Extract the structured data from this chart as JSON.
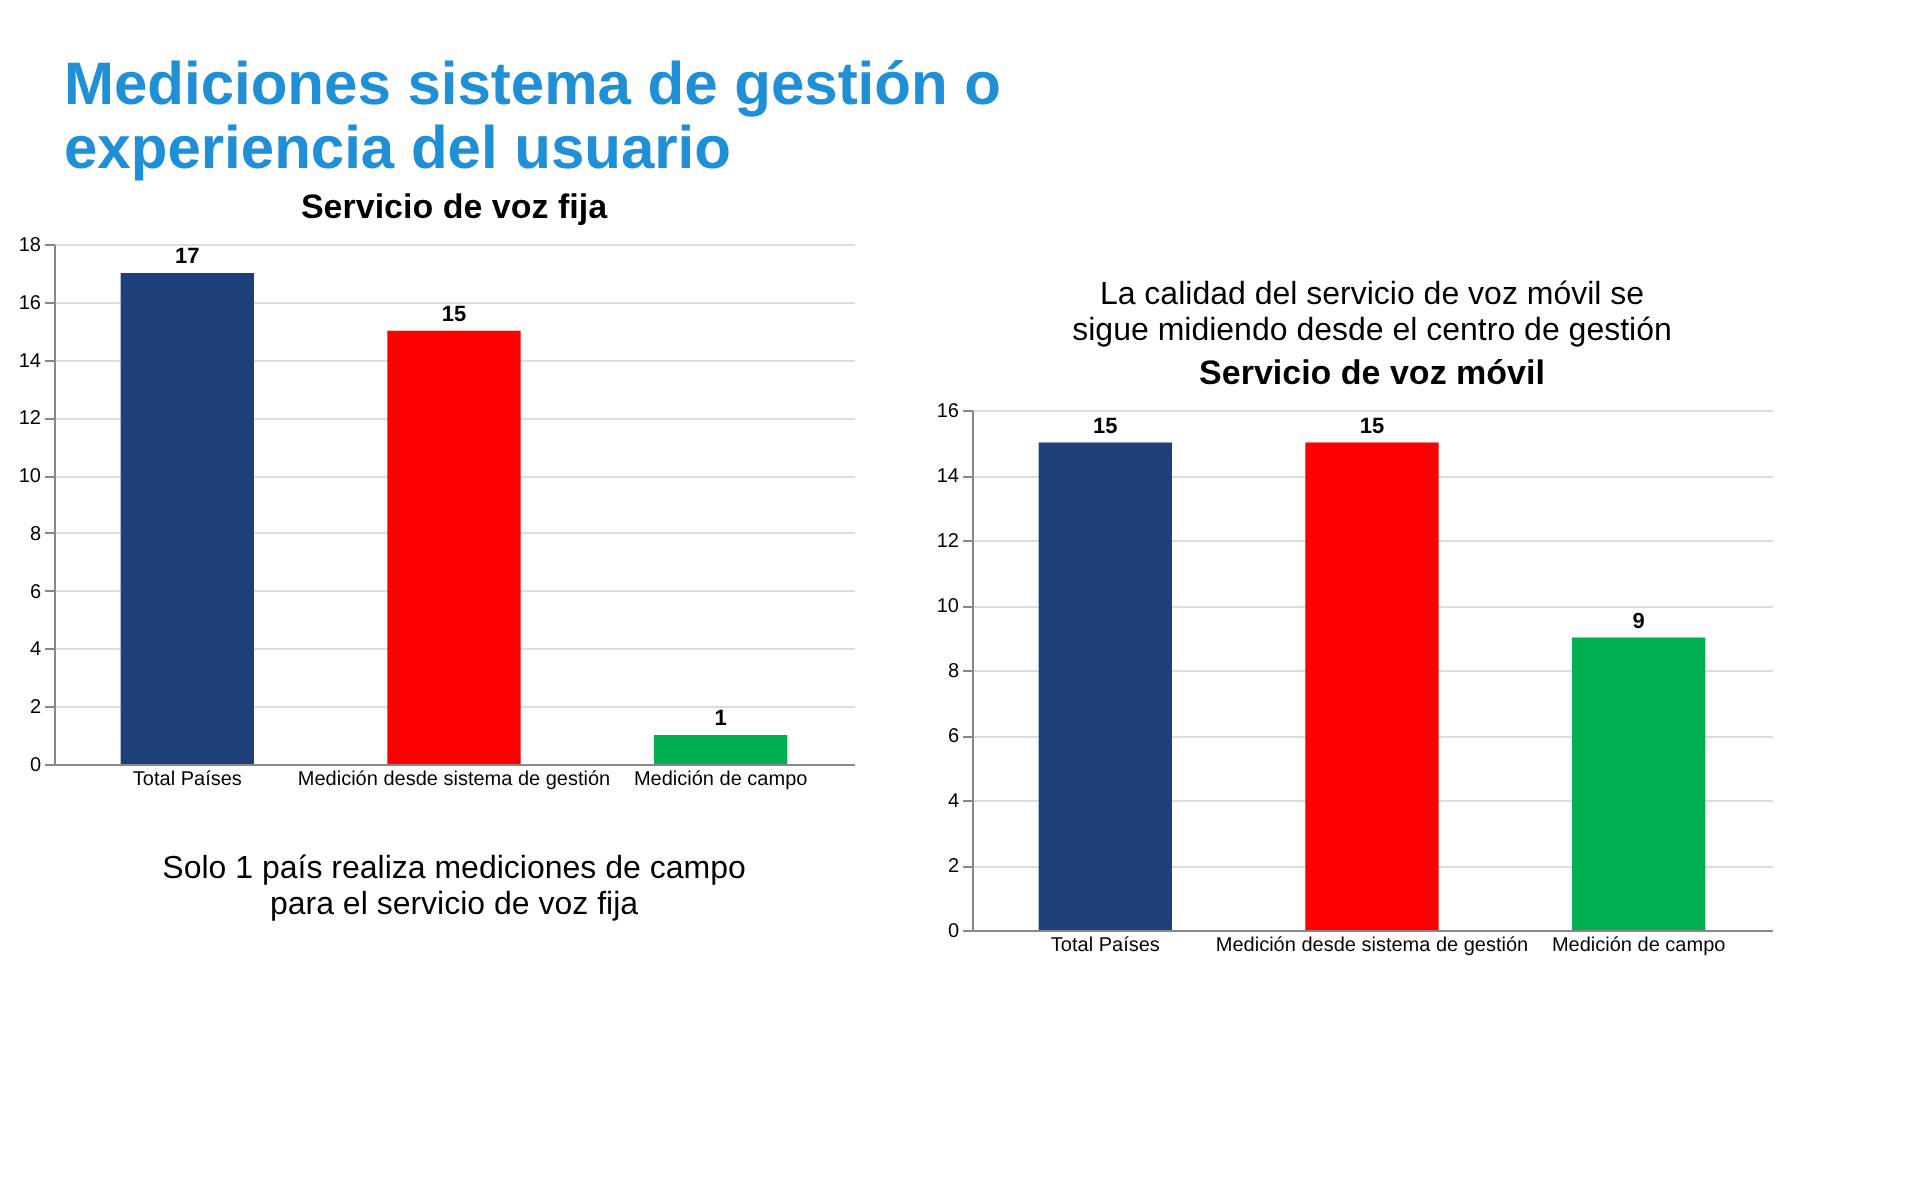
{
  "chart_data": [
    {
      "type": "bar",
      "title": "Servicio de voz fija",
      "categories": [
        "Total Países",
        "Medición desde sistema de gestión",
        "Medición de campo"
      ],
      "values": [
        17,
        15,
        1
      ],
      "colors": [
        "#1f3f7a",
        "#ff0000",
        "#00b050"
      ],
      "ylim": [
        0,
        18
      ],
      "yticks": [
        0,
        2,
        4,
        6,
        8,
        10,
        12,
        14,
        16,
        18
      ],
      "grid": "y",
      "data_labels": true,
      "annotations": [
        "Mediciones sistema de gestión o experiencia del usuario",
        "Solo 1 país realiza mediciones de campo para el servicio de voz fija"
      ]
    },
    {
      "type": "bar",
      "title": "Servicio de voz móvil",
      "categories": [
        "Total Países",
        "Medición desde sistema de gestión",
        "Medición de campo"
      ],
      "values": [
        15,
        15,
        9
      ],
      "colors": [
        "#1f3f7a",
        "#ff0000",
        "#00b050"
      ],
      "ylim": [
        0,
        16
      ],
      "yticks": [
        0,
        2,
        4,
        6,
        8,
        10,
        12,
        14,
        16
      ],
      "grid": "y",
      "data_labels": true,
      "annotations": [
        "La calidad del servicio de voz móvil se sigue midiendo desde el centro de gestión"
      ]
    }
  ]
}
